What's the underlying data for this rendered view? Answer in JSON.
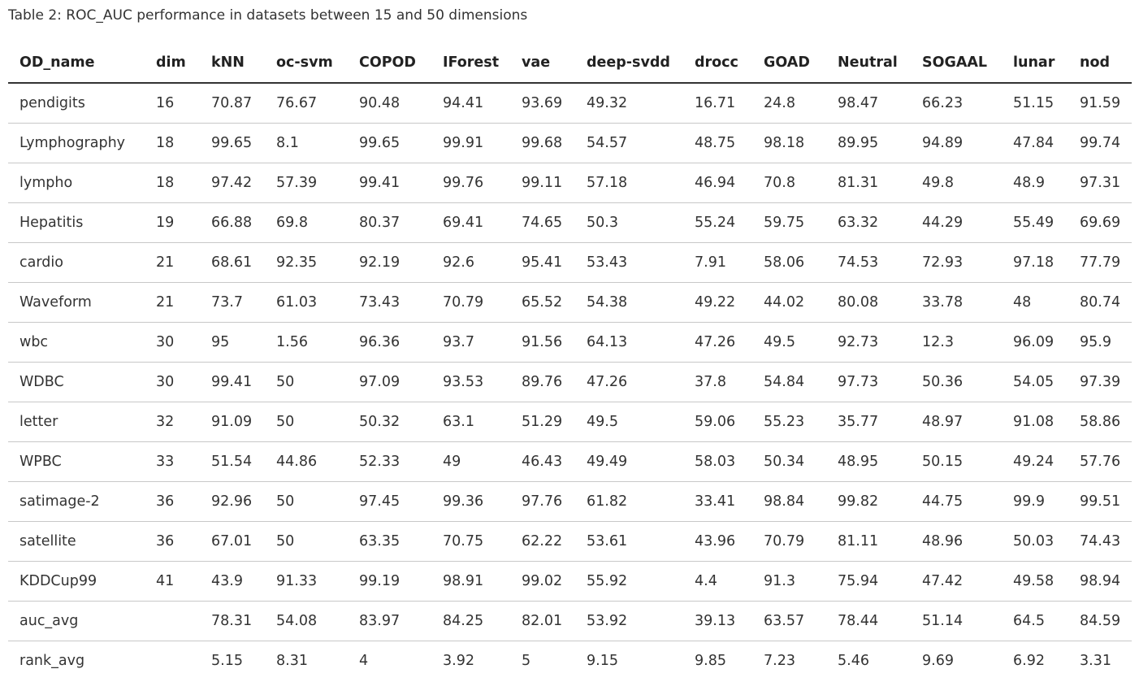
{
  "caption": "Table 2: ROC_AUC performance in datasets between 15 and 50 dimensions",
  "table": {
    "headers": [
      "OD_name",
      "dim",
      "kNN",
      "oc-svm",
      "COPOD",
      "IForest",
      "vae",
      "deep-svdd",
      "drocc",
      "GOAD",
      "Neutral",
      "SOGAAL",
      "lunar",
      "nod"
    ],
    "rows": [
      [
        "pendigits",
        "16",
        "70.87",
        "76.67",
        "90.48",
        "94.41",
        "93.69",
        "49.32",
        "16.71",
        "24.8",
        "98.47",
        "66.23",
        "51.15",
        "91.59"
      ],
      [
        "Lymphography",
        "18",
        "99.65",
        "8.1",
        "99.65",
        "99.91",
        "99.68",
        "54.57",
        "48.75",
        "98.18",
        "89.95",
        "94.89",
        "47.84",
        "99.74"
      ],
      [
        "lympho",
        "18",
        "97.42",
        "57.39",
        "99.41",
        "99.76",
        "99.11",
        "57.18",
        "46.94",
        "70.8",
        "81.31",
        "49.8",
        "48.9",
        "97.31"
      ],
      [
        "Hepatitis",
        "19",
        "66.88",
        "69.8",
        "80.37",
        "69.41",
        "74.65",
        "50.3",
        "55.24",
        "59.75",
        "63.32",
        "44.29",
        "55.49",
        "69.69"
      ],
      [
        "cardio",
        "21",
        "68.61",
        "92.35",
        "92.19",
        "92.6",
        "95.41",
        "53.43",
        "7.91",
        "58.06",
        "74.53",
        "72.93",
        "97.18",
        "77.79"
      ],
      [
        "Waveform",
        "21",
        "73.7",
        "61.03",
        "73.43",
        "70.79",
        "65.52",
        "54.38",
        "49.22",
        "44.02",
        "80.08",
        "33.78",
        "48",
        "80.74"
      ],
      [
        "wbc",
        "30",
        "95",
        "1.56",
        "96.36",
        "93.7",
        "91.56",
        "64.13",
        "47.26",
        "49.5",
        "92.73",
        "12.3",
        "96.09",
        "95.9"
      ],
      [
        "WDBC",
        "30",
        "99.41",
        "50",
        "97.09",
        "93.53",
        "89.76",
        "47.26",
        "37.8",
        "54.84",
        "97.73",
        "50.36",
        "54.05",
        "97.39"
      ],
      [
        "letter",
        "32",
        "91.09",
        "50",
        "50.32",
        "63.1",
        "51.29",
        "49.5",
        "59.06",
        "55.23",
        "35.77",
        "48.97",
        "91.08",
        "58.86"
      ],
      [
        "WPBC",
        "33",
        "51.54",
        "44.86",
        "52.33",
        "49",
        "46.43",
        "49.49",
        "58.03",
        "50.34",
        "48.95",
        "50.15",
        "49.24",
        "57.76"
      ],
      [
        "satimage-2",
        "36",
        "92.96",
        "50",
        "97.45",
        "99.36",
        "97.76",
        "61.82",
        "33.41",
        "98.84",
        "99.82",
        "44.75",
        "99.9",
        "99.51"
      ],
      [
        "satellite",
        "36",
        "67.01",
        "50",
        "63.35",
        "70.75",
        "62.22",
        "53.61",
        "43.96",
        "70.79",
        "81.11",
        "48.96",
        "50.03",
        "74.43"
      ],
      [
        "KDDCup99",
        "41",
        "43.9",
        "91.33",
        "99.19",
        "98.91",
        "99.02",
        "55.92",
        "4.4",
        "91.3",
        "75.94",
        "47.42",
        "49.58",
        "98.94"
      ],
      [
        "auc_avg",
        "",
        "78.31",
        "54.08",
        "83.97",
        "84.25",
        "82.01",
        "53.92",
        "39.13",
        "63.57",
        "78.44",
        "51.14",
        "64.5",
        "84.59"
      ],
      [
        "rank_avg",
        "",
        "5.15",
        "8.31",
        "4",
        "3.92",
        "5",
        "9.15",
        "9.85",
        "7.23",
        "5.46",
        "9.69",
        "6.92",
        "3.31"
      ]
    ]
  }
}
